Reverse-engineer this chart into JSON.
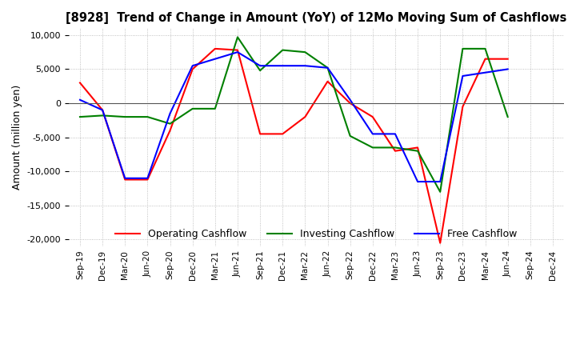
{
  "title": "[8928]  Trend of Change in Amount (YoY) of 12Mo Moving Sum of Cashflows",
  "ylabel": "Amount (million yen)",
  "ylim": [
    -21000,
    11000
  ],
  "yticks": [
    -20000,
    -15000,
    -10000,
    -5000,
    0,
    5000,
    10000
  ],
  "x_labels": [
    "Sep-19",
    "Dec-19",
    "Mar-20",
    "Jun-20",
    "Sep-20",
    "Dec-20",
    "Mar-21",
    "Jun-21",
    "Sep-21",
    "Dec-21",
    "Mar-22",
    "Jun-22",
    "Sep-22",
    "Dec-22",
    "Mar-23",
    "Jun-23",
    "Sep-23",
    "Dec-23",
    "Mar-24",
    "Jun-24",
    "Sep-24",
    "Dec-24"
  ],
  "operating": [
    3000,
    -1000,
    -11200,
    -11200,
    -4000,
    5000,
    8000,
    7800,
    -4500,
    -4500,
    -2000,
    3200,
    0,
    -2000,
    -7000,
    -6500,
    -20500,
    -500,
    6500,
    6500,
    null,
    null
  ],
  "investing": [
    -2000,
    -1800,
    -2000,
    -2000,
    -3000,
    -800,
    -800,
    9700,
    4800,
    7800,
    7500,
    5200,
    -4800,
    -6500,
    -6500,
    -7000,
    -13000,
    8000,
    8000,
    -2000,
    null,
    null
  ],
  "free": [
    500,
    -1000,
    -11000,
    -11000,
    -1500,
    5500,
    6500,
    7500,
    5500,
    5500,
    5500,
    5200,
    500,
    -4500,
    -4500,
    -11500,
    -11500,
    4000,
    4500,
    5000,
    null,
    null
  ],
  "op_color": "#ff0000",
  "inv_color": "#008000",
  "free_color": "#0000ff",
  "legend_labels": [
    "Operating Cashflow",
    "Investing Cashflow",
    "Free Cashflow"
  ],
  "background_color": "#ffffff",
  "grid_color": "#b0b0b0",
  "grid_style": ":"
}
